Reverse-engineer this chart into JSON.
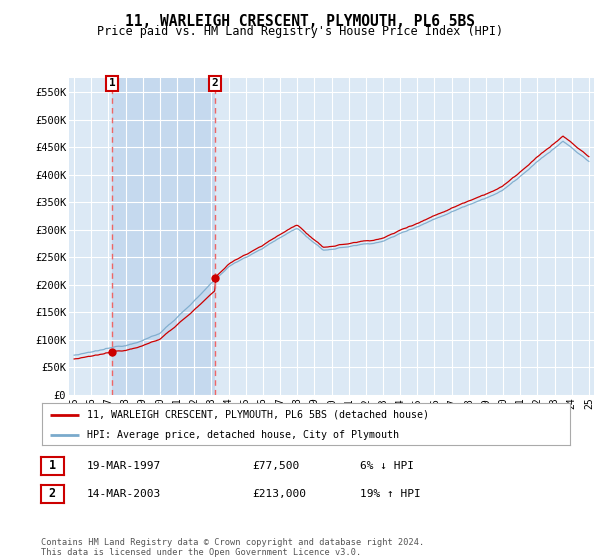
{
  "title": "11, WARLEIGH CRESCENT, PLYMOUTH, PL6 5BS",
  "subtitle": "Price paid vs. HM Land Registry's House Price Index (HPI)",
  "ylim": [
    0,
    575000
  ],
  "yticks": [
    0,
    50000,
    100000,
    150000,
    200000,
    250000,
    300000,
    350000,
    400000,
    450000,
    500000,
    550000
  ],
  "ytick_labels": [
    "£0",
    "£50K",
    "£100K",
    "£150K",
    "£200K",
    "£250K",
    "£300K",
    "£350K",
    "£400K",
    "£450K",
    "£500K",
    "£550K"
  ],
  "plot_bg_color": "#dce9f5",
  "shade_color": "#c5d9ee",
  "grid_color": "#ffffff",
  "sale1_year": 1997.21,
  "sale1_price": 77500,
  "sale2_year": 2003.21,
  "sale2_price": 213000,
  "legend_line1": "11, WARLEIGH CRESCENT, PLYMOUTH, PL6 5BS (detached house)",
  "legend_line2": "HPI: Average price, detached house, City of Plymouth",
  "table_row1": [
    "1",
    "19-MAR-1997",
    "£77,500",
    "6% ↓ HPI"
  ],
  "table_row2": [
    "2",
    "14-MAR-2003",
    "£213,000",
    "19% ↑ HPI"
  ],
  "footer": "Contains HM Land Registry data © Crown copyright and database right 2024.\nThis data is licensed under the Open Government Licence v3.0.",
  "red_line_color": "#cc0000",
  "blue_line_color": "#7aaacc",
  "marker_color": "#cc0000",
  "dashed_line_color": "#ee6666"
}
